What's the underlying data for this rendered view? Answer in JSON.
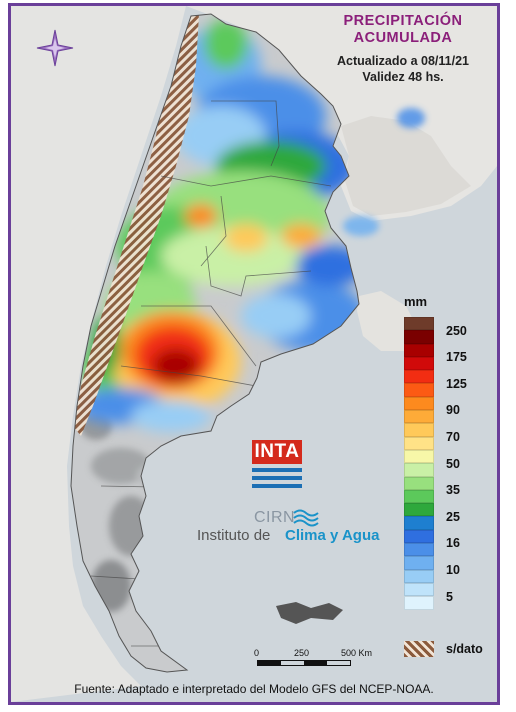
{
  "map": {
    "title_line1": "PRECIPITACIÓN",
    "title_line2": "ACUMULADA",
    "updated": "Actualizado a 08/11/21",
    "validity": "Validez 48 hs.",
    "source": "Fuente: Adaptado e interpretado del Modelo GFS del NCEP-NOAA."
  },
  "legend": {
    "unit": "mm",
    "bins": [
      {
        "label": "250",
        "color": "#6e3b2a"
      },
      {
        "label": "",
        "color": "#7a0000"
      },
      {
        "label": "175",
        "color": "#a80000"
      },
      {
        "label": "",
        "color": "#d10a0a"
      },
      {
        "label": "125",
        "color": "#f22d12"
      },
      {
        "label": "",
        "color": "#fc5a14"
      },
      {
        "label": "90",
        "color": "#fd8a1e"
      },
      {
        "label": "",
        "color": "#feab38"
      },
      {
        "label": "70",
        "color": "#ffc95a"
      },
      {
        "label": "",
        "color": "#ffe287"
      },
      {
        "label": "50",
        "color": "#f7f7a8"
      },
      {
        "label": "",
        "color": "#c9f0a6"
      },
      {
        "label": "35",
        "color": "#98e07e"
      },
      {
        "label": "",
        "color": "#5cc95b"
      },
      {
        "label": "25",
        "color": "#2ea83c"
      },
      {
        "label": "",
        "color": "#1e7fd0"
      },
      {
        "label": "16",
        "color": "#2f6fe0"
      },
      {
        "label": "",
        "color": "#4b8fe8"
      },
      {
        "label": "10",
        "color": "#6fb0f0"
      },
      {
        "label": "",
        "color": "#98cdf5"
      },
      {
        "label": "5",
        "color": "#bfe3fa"
      },
      {
        "label": "",
        "color": "#dff3fd"
      }
    ],
    "nodata_label": "s/dato"
  },
  "logo": {
    "inta": "INTA",
    "cirn": "CIRN",
    "institute_a": "Instituto de",
    "institute_b": "Clima y Agua"
  },
  "scale": {
    "zero": "0",
    "mid": "250",
    "end": "500 Km"
  }
}
